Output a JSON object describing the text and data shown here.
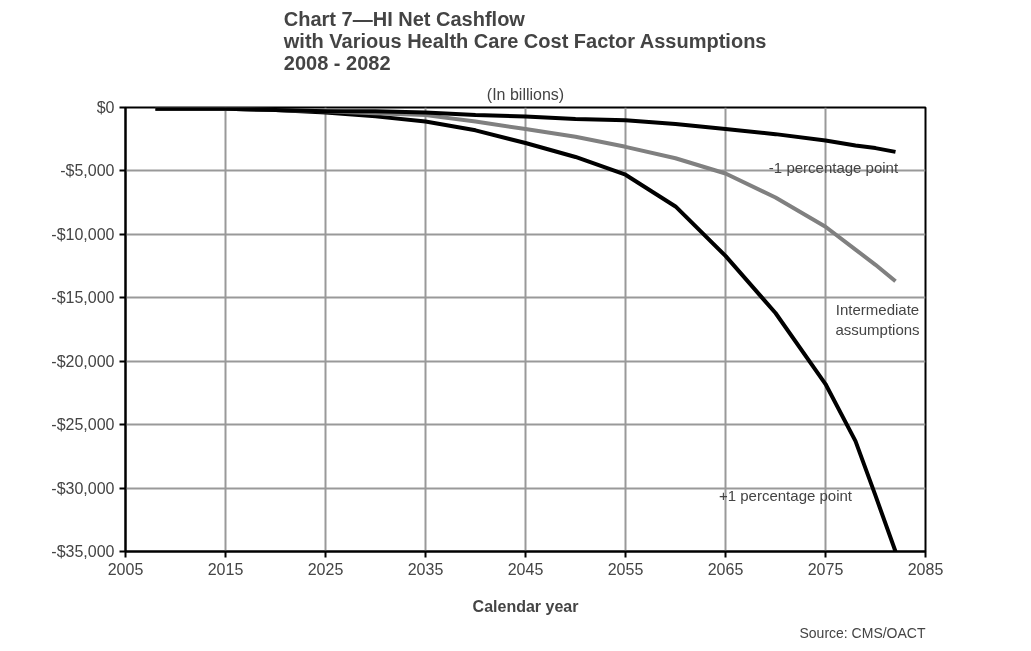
{
  "chart_data": {
    "type": "line",
    "title": "Chart 7—HI Net Cashflow\nwith Various Health Care Cost Factor Assumptions\n2008 - 2082",
    "subtitle": "(In billions)",
    "xlabel": "Calendar year",
    "x": [
      2008,
      2015,
      2020,
      2025,
      2030,
      2035,
      2040,
      2045,
      2050,
      2055,
      2060,
      2065,
      2070,
      2075,
      2078,
      2080,
      2082
    ],
    "series": [
      {
        "name": "+1 percentage point",
        "color": "#000000",
        "values": [
          -100,
          -100,
          -200,
          -400,
          -700,
          -1100,
          -1800,
          -2800,
          -3900,
          -5300,
          -7800,
          -11700,
          -16200,
          -21800,
          -26300,
          -30600,
          -35000
        ]
      },
      {
        "name": "Intermediate\nassumptions",
        "color": "#808080",
        "values": [
          -100,
          -100,
          -200,
          -300,
          -450,
          -600,
          -1100,
          -1700,
          -2300,
          -3100,
          -4000,
          -5200,
          -7100,
          -9400,
          -11200,
          -12400,
          -13700
        ]
      },
      {
        "name": "-1 percentage point",
        "color": "#000000",
        "values": [
          -100,
          -100,
          -200,
          -300,
          -300,
          -400,
          -600,
          -700,
          -900,
          -1000,
          -1300,
          -1700,
          -2100,
          -2600,
          -3000,
          -3200,
          -3500
        ]
      }
    ],
    "xlim": [
      2005,
      2085
    ],
    "xticks": [
      2005,
      2015,
      2025,
      2035,
      2045,
      2055,
      2065,
      2075,
      2085
    ],
    "ylim": [
      -35000,
      0
    ],
    "yticks": [
      {
        "value": 0,
        "label": "$0"
      },
      {
        "value": -5000,
        "label": "-$5,000"
      },
      {
        "value": -10000,
        "label": "-$10,000"
      },
      {
        "value": -15000,
        "label": "-$15,000"
      },
      {
        "value": -20000,
        "label": "-$20,000"
      },
      {
        "value": -25000,
        "label": "-$25,000"
      },
      {
        "value": -30000,
        "label": "-$30,000"
      },
      {
        "value": -35000,
        "label": "-$35,000"
      }
    ],
    "grid": true,
    "marker": "none",
    "line_style": "solid",
    "annotations": [
      "Source: CMS/OACT"
    ]
  }
}
